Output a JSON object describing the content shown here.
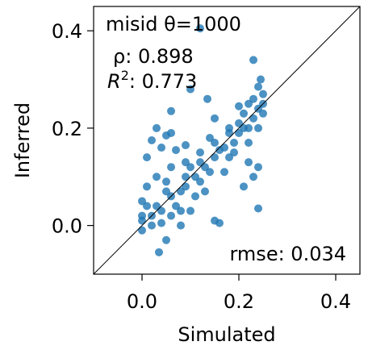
{
  "chart_data": {
    "type": "scatter",
    "title": "",
    "xlabel": "Simulated",
    "ylabel": "Inferred",
    "xlim": [
      -0.1,
      0.45
    ],
    "ylim": [
      -0.1,
      0.45
    ],
    "xticks": [
      0.0,
      0.2,
      0.4
    ],
    "yticks": [
      0.0,
      0.2,
      0.4
    ],
    "xtick_labels": [
      "0.0",
      "0.2",
      "0.4"
    ],
    "ytick_labels": [
      "0.0",
      "0.2",
      "0.4"
    ],
    "grid": false,
    "reference_line": "y = x",
    "point_color": "#1f77b4",
    "point_alpha": 0.8,
    "annotations": {
      "misid": "misid θ=1000",
      "rho": "ρ: 0.898",
      "r2_symbol": "R",
      "r2_superscript": "2",
      "r2_value": ": 0.773",
      "rmse": "rmse: 0.034"
    },
    "series": [
      {
        "points": [
          [
            0.12,
            0.405
          ],
          [
            0.23,
            0.34
          ],
          [
            0.06,
            0.235
          ],
          [
            0.245,
            0.3
          ],
          [
            0.24,
            0.285
          ],
          [
            0.1,
            0.28
          ],
          [
            0.135,
            0.26
          ],
          [
            0.2,
            0.245
          ],
          [
            0.03,
            0.2
          ],
          [
            0.05,
            0.185
          ],
          [
            0.02,
            0.175
          ],
          [
            0.06,
            0.19
          ],
          [
            0.04,
            0.16
          ],
          [
            0.01,
            0.14
          ],
          [
            0.07,
            0.155
          ],
          [
            0.09,
            0.165
          ],
          [
            0.24,
            0.035
          ],
          [
            0.035,
            -0.055
          ],
          [
            0.05,
            -0.03
          ],
          [
            0.16,
            0.005
          ],
          [
            0.15,
            0.01
          ],
          [
            0.24,
            0.12
          ],
          [
            0.22,
            0.13
          ],
          [
            0.21,
            0.08
          ],
          [
            0.23,
            0.1
          ],
          [
            0.25,
            0.23
          ],
          [
            0.25,
            0.25
          ],
          [
            0.25,
            0.27
          ],
          [
            0.22,
            0.25
          ],
          [
            0.2,
            0.21
          ],
          [
            0.24,
            0.2
          ],
          [
            0.22,
            0.2
          ],
          [
            0.21,
            0.2
          ],
          [
            0.16,
            0.155
          ],
          [
            0.07,
            0.04
          ],
          [
            0.1,
            0.03
          ],
          [
            0.11,
            0.06
          ],
          [
            0.15,
            0.22
          ],
          [
            0.13,
            0.12
          ],
          [
            0.09,
            0.08
          ],
          [
            0.06,
            0.02
          ],
          [
            0.02,
            0.02
          ],
          [
            0.0,
            0.01
          ],
          [
            0.04,
            0.005
          ],
          [
            0.08,
            0.0
          ],
          [
            0.05,
            0.07
          ],
          [
            0.12,
            0.09
          ],
          [
            0.18,
            0.14
          ],
          [
            0.19,
            0.17
          ],
          [
            0.23,
            0.22
          ],
          [
            0.2,
            0.19
          ],
          [
            0.17,
            0.16
          ],
          [
            0.14,
            0.11
          ],
          [
            0.11,
            0.1
          ],
          [
            0.08,
            0.07
          ],
          [
            0.03,
            0.04
          ],
          [
            0.0,
            0.05
          ],
          [
            0.01,
            0.08
          ],
          [
            0.03,
            0.1
          ],
          [
            0.06,
            0.12
          ],
          [
            0.09,
            0.13
          ],
          [
            0.12,
            0.15
          ],
          [
            0.15,
            0.17
          ],
          [
            0.18,
            0.2
          ],
          [
            0.21,
            0.23
          ],
          [
            0.24,
            0.24
          ],
          [
            0.23,
            0.26
          ],
          [
            0.18,
            0.19
          ],
          [
            0.15,
            0.14
          ],
          [
            0.12,
            0.13
          ],
          [
            0.09,
            0.1
          ],
          [
            0.06,
            0.06
          ],
          [
            0.04,
            0.03
          ],
          [
            0.02,
            0.0
          ],
          [
            0.0,
            -0.01
          ],
          [
            0.05,
            0.09
          ],
          [
            0.1,
            0.12
          ],
          [
            0.14,
            0.18
          ],
          [
            0.19,
            0.15
          ],
          [
            0.22,
            0.17
          ],
          [
            0.17,
            0.11
          ],
          [
            0.13,
            0.07
          ],
          [
            0.08,
            0.03
          ],
          [
            0.0,
            0.02
          ],
          [
            0.01,
            0.04
          ]
        ]
      }
    ]
  }
}
